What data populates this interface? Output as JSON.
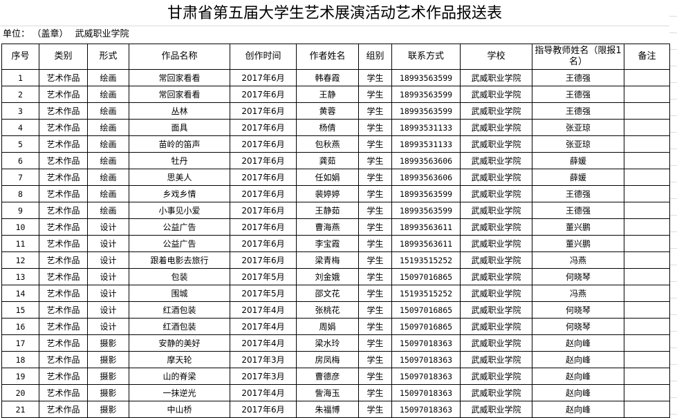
{
  "title": "甘肃省第五届大学生艺术展演活动艺术作品报送表",
  "unit": {
    "label": "单位：",
    "seal": "（盖章）",
    "value": "武威职业学院"
  },
  "columns": [
    "序号",
    "类别",
    "形式",
    "作品名称",
    "创作时间",
    "作者姓名",
    "组别",
    "联系方式",
    "学校",
    "指导教师姓名（限报1名）",
    "备注"
  ],
  "rows": [
    [
      "1",
      "艺术作品",
      "绘画",
      "常回家看看",
      "2017年6月",
      "韩春霞",
      "学生",
      "18993563599",
      "武威职业学院",
      "王德强",
      ""
    ],
    [
      "2",
      "艺术作品",
      "绘画",
      "常回家看看",
      "2017年6月",
      "王静",
      "学生",
      "18993563599",
      "武威职业学院",
      "王德强",
      ""
    ],
    [
      "3",
      "艺术作品",
      "绘画",
      "丛林",
      "2017年6月",
      "黄蓉",
      "学生",
      "18993563599",
      "武威职业学院",
      "王德强",
      ""
    ],
    [
      "4",
      "艺术作品",
      "绘画",
      "面具",
      "2017年6月",
      "杨倩",
      "学生",
      "18993531133",
      "武威职业学院",
      "张亚琼",
      ""
    ],
    [
      "5",
      "艺术作品",
      "绘画",
      "苗岭的笛声",
      "2017年6月",
      "包秋燕",
      "学生",
      "18993531133",
      "武威职业学院",
      "张亚琼",
      ""
    ],
    [
      "6",
      "艺术作品",
      "绘画",
      "牡丹",
      "2017年6月",
      "龚茹",
      "学生",
      "18993563606",
      "武威职业学院",
      "薛媛",
      ""
    ],
    [
      "7",
      "艺术作品",
      "绘画",
      "思美人",
      "2017年6月",
      "任如娟",
      "学生",
      "18993563606",
      "武威职业学院",
      "薛媛",
      ""
    ],
    [
      "8",
      "艺术作品",
      "绘画",
      "乡戏乡情",
      "2017年6月",
      "裴婷婷",
      "学生",
      "18993563599",
      "武威职业学院",
      "王德强",
      ""
    ],
    [
      "9",
      "艺术作品",
      "绘画",
      "小事见小爱",
      "2017年6月",
      "王静茹",
      "学生",
      "18993563599",
      "武威职业学院",
      "王德强",
      ""
    ],
    [
      "10",
      "艺术作品",
      "设计",
      "公益广告",
      "2017年6月",
      "曹海燕",
      "学生",
      "18993563611",
      "武威职业学院",
      "董兴鹏",
      ""
    ],
    [
      "11",
      "艺术作品",
      "设计",
      "公益广告",
      "2017年6月",
      "李宝霞",
      "学生",
      "18993563611",
      "武威职业学院",
      "董兴鹏",
      ""
    ],
    [
      "12",
      "艺术作品",
      "设计",
      "跟着电影去旅行",
      "2017年6月",
      "梁青梅",
      "学生",
      "15193515252",
      "武威职业学院",
      "冯燕",
      ""
    ],
    [
      "13",
      "艺术作品",
      "设计",
      "包装",
      "2017年5月",
      "刘金娥",
      "学生",
      "15097016865",
      "武威职业学院",
      "何晓琴",
      ""
    ],
    [
      "14",
      "艺术作品",
      "设计",
      "围城",
      "2017年5月",
      "邵文花",
      "学生",
      "15193515252",
      "武威职业学院",
      "冯燕",
      ""
    ],
    [
      "15",
      "艺术作品",
      "设计",
      "红酒包装",
      "2017年4月",
      "张桃花",
      "学生",
      "15097016865",
      "武威职业学院",
      "何晓琴",
      ""
    ],
    [
      "16",
      "艺术作品",
      "设计",
      "红酒包装",
      "2017年4月",
      "周娟",
      "学生",
      "15097016865",
      "武威职业学院",
      "何晓琴",
      ""
    ],
    [
      "17",
      "艺术作品",
      "摄影",
      "安静的美好",
      "2017年4月",
      "梁水玲",
      "学生",
      "15097018363",
      "武威职业学院",
      "赵向峰",
      ""
    ],
    [
      "18",
      "艺术作品",
      "摄影",
      "摩天轮",
      "2017年3月",
      "房凤梅",
      "学生",
      "15097018363",
      "武威职业学院",
      "赵向峰",
      ""
    ],
    [
      "19",
      "艺术作品",
      "摄影",
      "山的脊梁",
      "2017年3月",
      "曹德彦",
      "学生",
      "15097018363",
      "武威职业学院",
      "赵向峰",
      ""
    ],
    [
      "20",
      "艺术作品",
      "摄影",
      "一抹逆光",
      "2017年4月",
      "訾海玉",
      "学生",
      "15097018363",
      "武威职业学院",
      "赵向峰",
      ""
    ],
    [
      "21",
      "艺术作品",
      "摄影",
      "中山桥",
      "2017年6月",
      "朱福博",
      "学生",
      "15097018363",
      "武威职业学院",
      "赵向峰",
      ""
    ]
  ]
}
